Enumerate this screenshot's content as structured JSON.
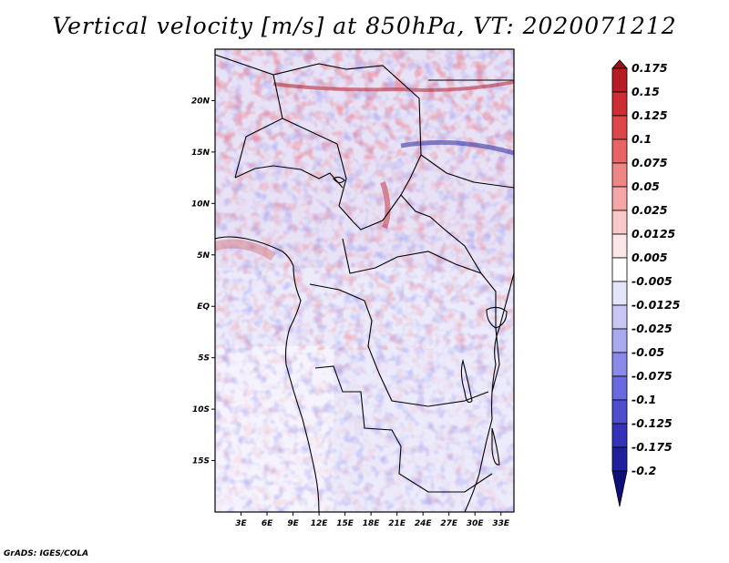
{
  "footer": "GrADS: IGES/COLA",
  "chart_data": {
    "type": "heatmap",
    "title": "Vertical velocity [m/s] at 850hPa, VT: 2020071212",
    "variable": "Vertical velocity",
    "units": "m/s",
    "level": "850hPa",
    "valid_time": "2020071212",
    "x_ticks": [
      "3E",
      "6E",
      "9E",
      "12E",
      "15E",
      "18E",
      "21E",
      "24E",
      "27E",
      "30E",
      "33E"
    ],
    "y_ticks": [
      "20N",
      "15N",
      "10N",
      "5N",
      "EQ",
      "5S",
      "10S",
      "15S"
    ],
    "xlim": [
      0,
      34.5
    ],
    "ylim": [
      -20,
      25
    ],
    "colorbar": {
      "labels": [
        "0.175",
        "0.15",
        "0.125",
        "0.1",
        "0.075",
        "0.05",
        "0.025",
        "0.0125",
        "0.005",
        "-0.005",
        "-0.0125",
        "-0.025",
        "-0.05",
        "-0.075",
        "-0.1",
        "-0.125",
        "-0.175",
        "-0.2"
      ],
      "colors": [
        "#9e0f1a",
        "#b71c25",
        "#cc2e33",
        "#de4747",
        "#e86565",
        "#ef8686",
        "#f5a7a7",
        "#f9c9c9",
        "#fde6e6",
        "#ffffff",
        "#e4e4fb",
        "#c7c7f5",
        "#a9a9f0",
        "#8a8ae8",
        "#6a6ade",
        "#4d4dcd",
        "#3333b8",
        "#1f1f9e",
        "#0f0f7a"
      ]
    }
  }
}
